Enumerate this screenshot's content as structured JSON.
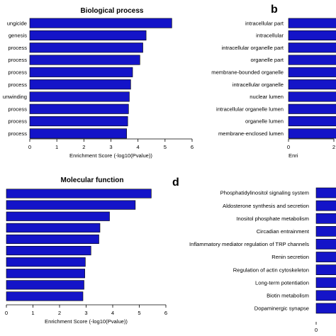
{
  "chart_data": [
    {
      "panel": "",
      "type": "bar",
      "orientation": "horizontal",
      "title": "Biological process",
      "xlabel": "Enrichment  Score (-log10(Pvalue))",
      "xlim": [
        0,
        6
      ],
      "xticks": [
        0,
        1,
        2,
        3,
        4,
        5,
        6
      ],
      "categories": [
        "ungicide",
        "genesis",
        "process",
        "process",
        "process",
        "process",
        "unwinding",
        "process",
        "process",
        "process"
      ],
      "values": [
        5.25,
        4.3,
        4.18,
        4.07,
        3.8,
        3.73,
        3.68,
        3.65,
        3.62,
        3.58
      ]
    },
    {
      "panel": "b",
      "type": "bar",
      "orientation": "horizontal",
      "title": "",
      "xlabel": "Enri",
      "xlim": [
        0,
        6
      ],
      "xticks": [
        0,
        2
      ],
      "categories": [
        "intracellular part",
        "intracellular",
        "intracellular organelle part",
        "organelle part",
        "membrane-bounded organelle",
        "intracellular organelle",
        "nuclear lumen",
        "intracellular organelle lumen",
        "organelle lumen",
        "membrane-enclosed lumen"
      ],
      "values": [
        4.0,
        4.0,
        4.0,
        4.0,
        4.0,
        4.0,
        4.0,
        4.0,
        4.0,
        4.0
      ]
    },
    {
      "panel": "",
      "type": "bar",
      "orientation": "horizontal",
      "title": "Molecular function",
      "xlabel": "Enrichment  Score (-log10(Pvalue))",
      "xlim": [
        0,
        6
      ],
      "xticks": [
        0,
        1,
        2,
        3,
        4,
        5,
        6
      ],
      "categories": [
        "",
        "",
        "",
        "",
        "",
        "",
        "",
        "",
        "",
        ""
      ],
      "values": [
        5.45,
        4.85,
        3.88,
        3.52,
        3.48,
        3.18,
        2.97,
        2.95,
        2.92,
        2.88
      ]
    },
    {
      "panel": "d",
      "type": "bar",
      "orientation": "horizontal",
      "title": "",
      "xlabel": "",
      "xlim": [
        0,
        6
      ],
      "xticks": [
        0
      ],
      "categories": [
        "Phosphatidylinositol signaling system",
        "Aldosterone synthesis and secretion",
        "Inositol phosphate metabolism",
        "Circadian entrainment",
        "Inflammatory mediator regulation of TRP channels",
        "Renin secretion",
        "Regulation of actin cytoskeleton",
        "Long-term potentiation",
        "Biotin metabolism",
        "Dopaminergic synapse"
      ],
      "values": [
        4.0,
        4.0,
        4.0,
        4.0,
        4.0,
        4.0,
        4.0,
        4.0,
        4.0,
        4.0
      ]
    }
  ]
}
